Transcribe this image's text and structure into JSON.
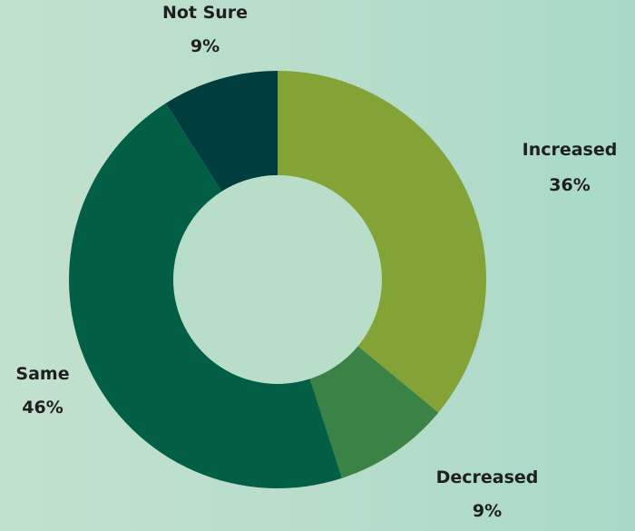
{
  "chart_data": {
    "type": "pie",
    "variant": "donut",
    "categories": [
      "Increased",
      "Decreased",
      "Same",
      "Not Sure"
    ],
    "values": [
      36,
      9,
      46,
      9
    ],
    "value_labels": [
      "36%",
      "9%",
      "46%",
      "9%"
    ],
    "colors": [
      "#83a337",
      "#3a8245",
      "#035e46",
      "#003d3e"
    ],
    "start_angle": "12 o'clock",
    "direction": "clockwise",
    "legend": "none",
    "title": ""
  }
}
